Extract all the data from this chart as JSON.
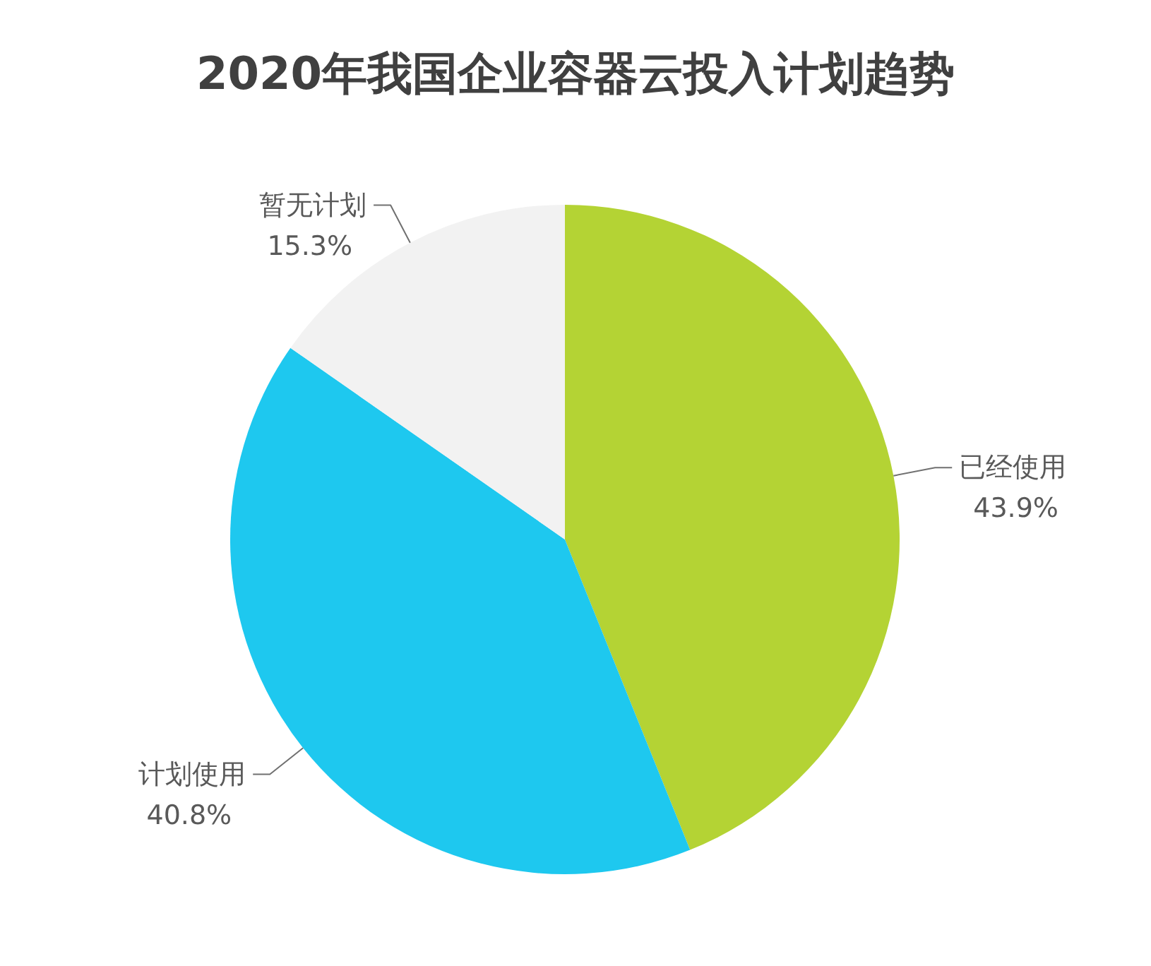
{
  "chart_data": {
    "type": "pie",
    "title": "2020年我国企业容器云投入计划趋势",
    "categories": [
      "已经使用",
      "计划使用",
      "暂无计划"
    ],
    "values": [
      43.9,
      40.8,
      15.3
    ],
    "colors": [
      "#b4d334",
      "#1ec8ef",
      "#f2f2f2"
    ],
    "value_labels": [
      "43.9%",
      "40.8%",
      "15.3%"
    ]
  }
}
